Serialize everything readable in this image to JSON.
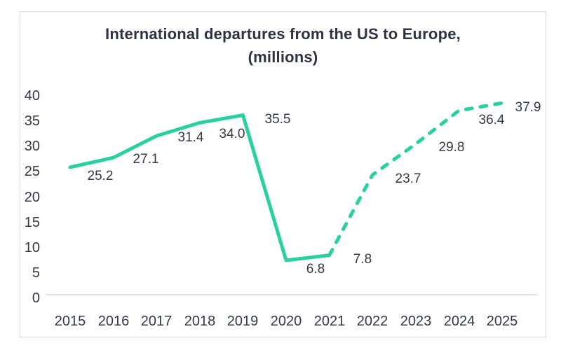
{
  "chart_data": {
    "type": "line",
    "title_line1": "International departures from the US to Europe,",
    "title_line2": "(millions)",
    "categories": [
      "2015",
      "2016",
      "2017",
      "2018",
      "2019",
      "2020",
      "2021",
      "2022",
      "2023",
      "2024",
      "2025"
    ],
    "values": [
      25.2,
      27.1,
      31.4,
      34.0,
      35.5,
      6.8,
      7.8,
      23.7,
      29.8,
      36.4,
      37.9
    ],
    "value_labels": [
      "25.2",
      "27.1",
      "31.4",
      "34.0",
      "35.5",
      "6.8",
      "7.8",
      "23.7",
      "29.8",
      "36.4",
      "37.9"
    ],
    "solid_segment_end_index": 6,
    "solid_segment_years": [
      "2015",
      "2021"
    ],
    "dashed_segment_years": [
      "2021",
      "2025"
    ],
    "y_tick_labels": [
      "40",
      "35",
      "30",
      "25",
      "20",
      "15",
      "10",
      "5",
      "0"
    ],
    "ylim": [
      0,
      40
    ],
    "xlabel": "",
    "ylabel": "",
    "legend": "none",
    "grid": "zero-axis-line-only",
    "line_color": "#29d1a0",
    "axis_line_color": "#d9d9d9",
    "border_color": "#d9d9d9",
    "title_color": "#2d3343",
    "label_color": "#333846",
    "background_color": "#ffffff"
  }
}
